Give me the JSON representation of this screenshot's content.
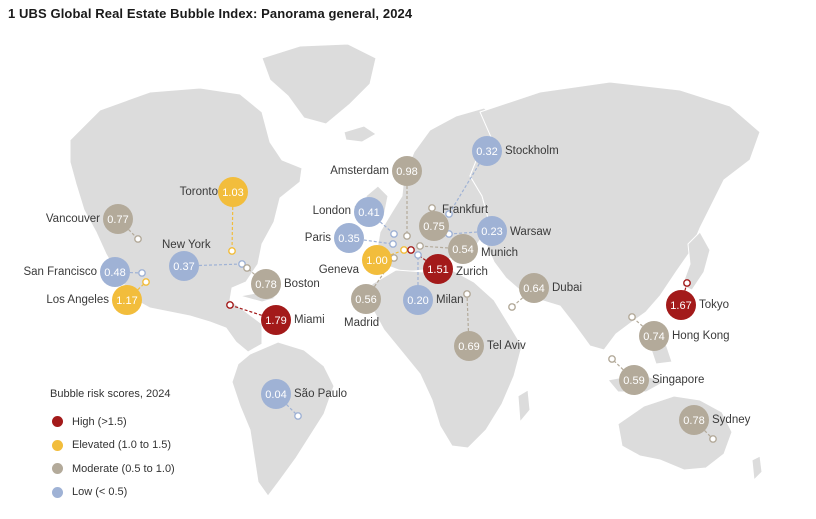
{
  "title": "1 UBS Global Real Estate Bubble Index: Panorama general, 2024",
  "colors": {
    "high": "#a31a1a",
    "elevated": "#f2bd3c",
    "moderate": "#b3aa9a",
    "low": "#9fb2d5",
    "land": "#dcdcdc"
  },
  "legend": {
    "title": "Bubble risk scores, 2024",
    "items": [
      {
        "key": "high",
        "label": "High (>1.5)"
      },
      {
        "key": "elevated",
        "label": "Elevated (1.0 to 1.5)"
      },
      {
        "key": "moderate",
        "label": "Moderate (0.5 to 1.0)"
      },
      {
        "key": "low",
        "label": "Low (< 0.5)"
      }
    ]
  },
  "cities": [
    {
      "name": "Vancouver",
      "score": "0.77",
      "risk": "moderate"
    },
    {
      "name": "Toronto",
      "score": "1.03",
      "risk": "elevated"
    },
    {
      "name": "New York",
      "score": "0.37",
      "risk": "low"
    },
    {
      "name": "San Francisco",
      "score": "0.48",
      "risk": "low"
    },
    {
      "name": "Los Angeles",
      "score": "1.17",
      "risk": "elevated"
    },
    {
      "name": "Boston",
      "score": "0.78",
      "risk": "moderate"
    },
    {
      "name": "Miami",
      "score": "1.79",
      "risk": "high"
    },
    {
      "name": "São Paulo",
      "score": "0.04",
      "risk": "low"
    },
    {
      "name": "Amsterdam",
      "score": "0.98",
      "risk": "moderate"
    },
    {
      "name": "London",
      "score": "0.41",
      "risk": "low"
    },
    {
      "name": "Paris",
      "score": "0.35",
      "risk": "low"
    },
    {
      "name": "Geneva",
      "score": "1.00",
      "risk": "elevated"
    },
    {
      "name": "Madrid",
      "score": "0.56",
      "risk": "moderate"
    },
    {
      "name": "Frankfurt",
      "score": "0.75",
      "risk": "moderate"
    },
    {
      "name": "Stockholm",
      "score": "0.32",
      "risk": "low"
    },
    {
      "name": "Warsaw",
      "score": "0.23",
      "risk": "low"
    },
    {
      "name": "Munich",
      "score": "0.54",
      "risk": "moderate"
    },
    {
      "name": "Zurich",
      "score": "1.51",
      "risk": "high"
    },
    {
      "name": "Milan",
      "score": "0.20",
      "risk": "low"
    },
    {
      "name": "Tel Aviv",
      "score": "0.69",
      "risk": "moderate"
    },
    {
      "name": "Dubai",
      "score": "0.64",
      "risk": "moderate"
    },
    {
      "name": "Tokyo",
      "score": "1.67",
      "risk": "high"
    },
    {
      "name": "Hong Kong",
      "score": "0.74",
      "risk": "moderate"
    },
    {
      "name": "Singapore",
      "score": "0.59",
      "risk": "moderate"
    },
    {
      "name": "Sydney",
      "score": "0.78",
      "risk": "moderate"
    }
  ]
}
